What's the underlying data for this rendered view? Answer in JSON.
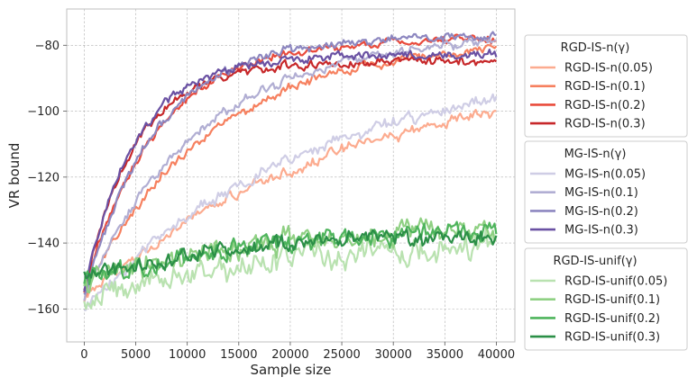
{
  "chart_data": {
    "type": "line",
    "xlabel": "Sample size",
    "ylabel": "VR bound",
    "xlim": [
      -1700,
      41800
    ],
    "ylim": [
      -170,
      -69
    ],
    "xticks": [
      0,
      5000,
      10000,
      15000,
      20000,
      25000,
      30000,
      35000,
      40000
    ],
    "yticks": [
      -160,
      -140,
      -120,
      -100,
      -80
    ],
    "grid": true,
    "legend_placement": "right, outside plot",
    "legend_groups": [
      {
        "title": "RGD-IS-n(γ)",
        "series": [
          {
            "name": "RGD-IS-n(0.05)",
            "color": "#fcab8f",
            "start": -157,
            "end": -86,
            "rate": 25000,
            "noise": 1.0
          },
          {
            "name": "RGD-IS-n(0.1)",
            "color": "#f6805f",
            "start": -156,
            "end": -78,
            "rate": 12000,
            "noise": 0.9
          },
          {
            "name": "RGD-IS-n(0.2)",
            "color": "#e94b3c",
            "start": -155,
            "end": -78,
            "rate": 7000,
            "noise": 0.8
          },
          {
            "name": "RGD-IS-n(0.3)",
            "color": "#c7282a",
            "start": -154,
            "end": -85,
            "rate": 5000,
            "noise": 0.8
          }
        ]
      },
      {
        "title": "MG-IS-n(γ)",
        "series": [
          {
            "name": "MG-IS-n(0.05)",
            "color": "#cfcde5",
            "start": -160,
            "end": -84,
            "rate": 22000,
            "noise": 1.1
          },
          {
            "name": "MG-IS-n(0.1)",
            "color": "#b1aed3",
            "start": -157,
            "end": -77,
            "rate": 11000,
            "noise": 0.9
          },
          {
            "name": "MG-IS-n(0.2)",
            "color": "#8d87c0",
            "start": -156,
            "end": -77,
            "rate": 7000,
            "noise": 0.8
          },
          {
            "name": "MG-IS-n(0.3)",
            "color": "#6a51a3",
            "start": -155,
            "end": -83,
            "rate": 5000,
            "noise": 0.8
          }
        ]
      },
      {
        "title": "RGD-IS-unif(γ)",
        "series": [
          {
            "name": "RGD-IS-unif(0.05)",
            "color": "#b9e2b0",
            "start": -158,
            "end": -138,
            "rate": 18000,
            "noise": 2.4
          },
          {
            "name": "RGD-IS-unif(0.1)",
            "color": "#8fd083",
            "start": -153,
            "end": -133,
            "rate": 18000,
            "noise": 2.2
          },
          {
            "name": "RGD-IS-unif(0.2)",
            "color": "#4eb45c",
            "start": -152,
            "end": -135,
            "rate": 16000,
            "noise": 1.9
          },
          {
            "name": "RGD-IS-unif(0.3)",
            "color": "#2b8f47",
            "start": -150,
            "end": -137,
            "rate": 15000,
            "noise": 1.6
          }
        ]
      }
    ]
  }
}
